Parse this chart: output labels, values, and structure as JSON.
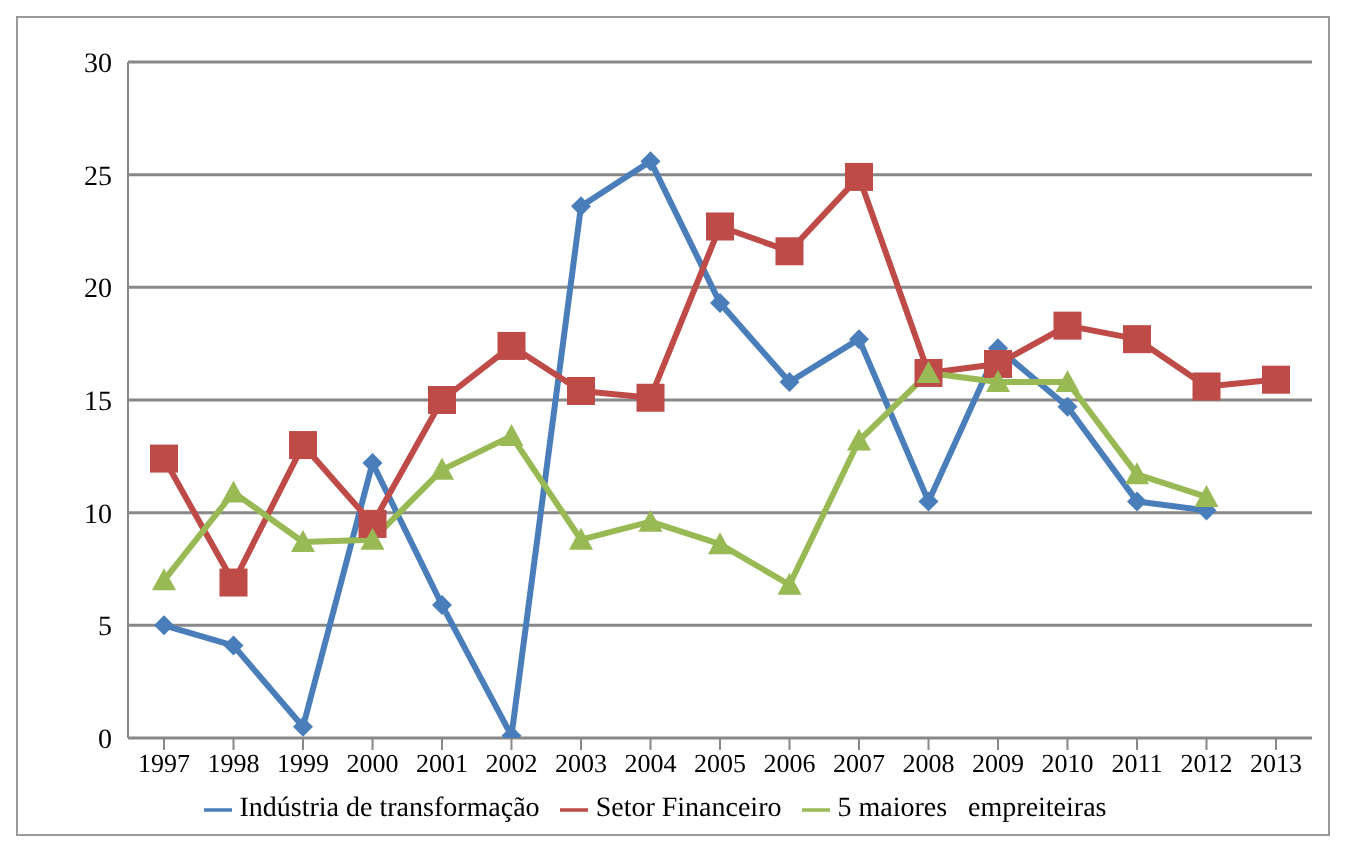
{
  "chart_data": {
    "type": "line",
    "categories": [
      "1997",
      "1998",
      "1999",
      "2000",
      "2001",
      "2002",
      "2003",
      "2004",
      "2005",
      "2006",
      "2007",
      "2008",
      "2009",
      "2010",
      "2011",
      "2012",
      "2013"
    ],
    "series": [
      {
        "name": "Indústria de transformação",
        "color": "#4a7ebb",
        "marker": "diamond",
        "values": [
          5.0,
          4.1,
          0.5,
          12.2,
          5.9,
          0.1,
          23.6,
          25.6,
          19.3,
          15.8,
          17.7,
          10.5,
          17.3,
          14.7,
          10.5,
          10.1,
          null
        ]
      },
      {
        "name": "Setor Financeiro",
        "color": "#be4b48",
        "marker": "square",
        "values": [
          12.4,
          6.9,
          13.0,
          9.5,
          15.0,
          17.4,
          15.4,
          15.1,
          22.7,
          21.6,
          24.9,
          16.2,
          16.6,
          18.3,
          17.7,
          15.6,
          15.9
        ]
      },
      {
        "name": "5 maiores   empreiteiras",
        "color": "#98b954",
        "marker": "triangle",
        "values": [
          7.0,
          10.9,
          8.7,
          8.8,
          11.9,
          13.4,
          8.8,
          9.6,
          8.6,
          6.8,
          13.2,
          16.2,
          15.8,
          15.8,
          11.7,
          10.7,
          null
        ]
      }
    ],
    "ylim": [
      0,
      30
    ],
    "yticks": [
      0,
      5,
      10,
      15,
      20,
      25,
      30
    ],
    "grid": "y",
    "legend": "bottom",
    "line_style": "solid"
  }
}
